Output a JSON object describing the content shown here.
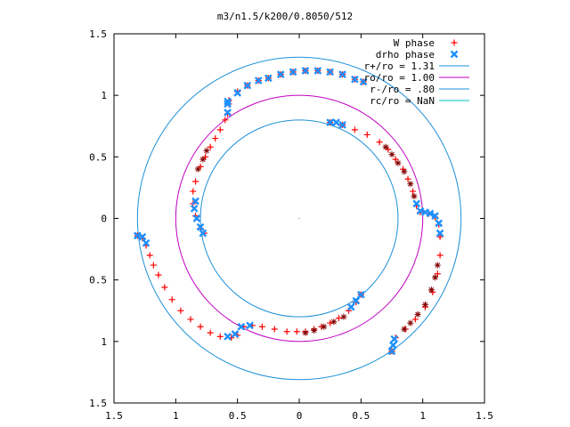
{
  "chart_data": {
    "type": "scatter",
    "title": "m3/n1.5/k200/0.8050/512",
    "xlabel": "",
    "ylabel": "",
    "xlim": [
      -1.5,
      1.5
    ],
    "ylim": [
      -1.5,
      1.5
    ],
    "x_ticks": [
      -1.5,
      -1,
      -0.5,
      0,
      0.5,
      1,
      1.5
    ],
    "y_ticks": [
      1.5,
      1,
      0.5,
      0,
      -0.5,
      -1,
      -1.5
    ],
    "x_tick_labels": [
      "1.5",
      "1",
      "0.5",
      "0",
      "0.5",
      "1",
      "1.5"
    ],
    "y_tick_labels": [
      "1.5",
      "1",
      "0.5",
      "0",
      "0.5",
      "1",
      "1.5"
    ],
    "grid": false,
    "legend_position": "top-right",
    "legend": [
      {
        "label": "W phase",
        "kind": "marker",
        "marker": "+",
        "color": "#ff0000"
      },
      {
        "label": "drho phase",
        "kind": "marker",
        "marker": "x",
        "color": "#1e90ff"
      },
      {
        "label": "r+/ro = 1.31",
        "kind": "line",
        "color": "#1e90d8"
      },
      {
        "label": "ro/ro = 1.00",
        "kind": "line",
        "color": "#c000c0"
      },
      {
        "label": "r-/ro = .80",
        "kind": "line",
        "color": "#1e90d8"
      },
      {
        "label": "rc/ro = NaN",
        "kind": "line",
        "color": "#00c0c0"
      }
    ],
    "circles": [
      {
        "name": "r+/ro = 1.31",
        "r": 1.31,
        "color": "#1e90d8"
      },
      {
        "name": "ro/ro = 1.00",
        "r": 1.0,
        "color": "#c000c0"
      },
      {
        "name": "r-/ro = .80",
        "r": 0.8,
        "color": "#1e90d8"
      }
    ],
    "series": [
      {
        "name": "W phase",
        "marker": "+",
        "color": "#ff0000",
        "points": [
          [
            -0.57,
            0.96
          ],
          [
            -0.5,
            1.03
          ],
          [
            -0.42,
            1.08
          ],
          [
            -0.33,
            1.12
          ],
          [
            -0.25,
            1.14
          ],
          [
            -0.15,
            1.17
          ],
          [
            -0.05,
            1.19
          ],
          [
            0.05,
            1.2
          ],
          [
            0.15,
            1.2
          ],
          [
            0.25,
            1.19
          ],
          [
            0.35,
            1.17
          ],
          [
            0.45,
            1.13
          ],
          [
            0.52,
            1.11
          ],
          [
            -0.57,
            0.93
          ],
          [
            -0.58,
            0.85
          ],
          [
            -0.6,
            0.8
          ],
          [
            -0.64,
            0.72
          ],
          [
            -0.68,
            0.65
          ],
          [
            -0.72,
            0.58
          ],
          [
            -0.76,
            0.5
          ],
          [
            -0.8,
            0.42
          ],
          [
            -0.84,
            0.3
          ],
          [
            -0.86,
            0.22
          ],
          [
            -0.86,
            0.12
          ],
          [
            -0.84,
            0.02
          ],
          [
            -0.8,
            -0.08
          ],
          [
            -0.77,
            -0.12
          ],
          [
            0.25,
            0.78
          ],
          [
            0.35,
            0.76
          ],
          [
            0.45,
            0.72
          ],
          [
            0.55,
            0.68
          ],
          [
            0.65,
            0.62
          ],
          [
            0.72,
            0.56
          ],
          [
            0.78,
            0.48
          ],
          [
            0.84,
            0.4
          ],
          [
            0.88,
            0.32
          ],
          [
            0.92,
            0.22
          ],
          [
            0.95,
            0.1
          ],
          [
            0.98,
            0.05
          ],
          [
            1.05,
            0.04
          ],
          [
            1.1,
            0.01
          ],
          [
            1.13,
            -0.05
          ],
          [
            1.14,
            -0.15
          ],
          [
            1.14,
            -0.3
          ],
          [
            1.12,
            -0.45
          ],
          [
            1.08,
            -0.6
          ],
          [
            1.02,
            -0.72
          ],
          [
            0.94,
            -0.82
          ],
          [
            0.86,
            -0.9
          ],
          [
            0.78,
            -0.97
          ],
          [
            0.75,
            -1.08
          ],
          [
            -1.31,
            -0.14
          ],
          [
            -1.27,
            -0.16
          ],
          [
            -1.24,
            -0.22
          ],
          [
            -1.21,
            -0.3
          ],
          [
            -1.18,
            -0.38
          ],
          [
            -1.14,
            -0.46
          ],
          [
            -1.09,
            -0.56
          ],
          [
            -1.03,
            -0.66
          ],
          [
            -0.96,
            -0.75
          ],
          [
            -0.88,
            -0.82
          ],
          [
            -0.8,
            -0.88
          ],
          [
            -0.72,
            -0.93
          ],
          [
            -0.64,
            -0.96
          ],
          [
            -0.55,
            -0.97
          ],
          [
            -0.5,
            -0.95
          ],
          [
            -0.45,
            -0.88
          ],
          [
            -0.38,
            -0.87
          ],
          [
            -0.3,
            -0.88
          ],
          [
            -0.2,
            -0.9
          ],
          [
            -0.1,
            -0.92
          ],
          [
            -0.02,
            -0.92
          ],
          [
            0.05,
            -0.92
          ],
          [
            0.12,
            -0.9
          ],
          [
            0.18,
            -0.88
          ],
          [
            0.25,
            -0.85
          ],
          [
            0.32,
            -0.81
          ],
          [
            0.4,
            -0.75
          ],
          [
            0.46,
            -0.68
          ],
          [
            0.5,
            -0.62
          ]
        ]
      },
      {
        "name": "drho phase",
        "marker": "x",
        "color": "#1e90ff",
        "points": [
          [
            -0.58,
            0.95
          ],
          [
            -0.5,
            1.02
          ],
          [
            -0.42,
            1.08
          ],
          [
            -0.33,
            1.12
          ],
          [
            -0.25,
            1.14
          ],
          [
            -0.15,
            1.17
          ],
          [
            -0.05,
            1.19
          ],
          [
            0.05,
            1.2
          ],
          [
            0.15,
            1.2
          ],
          [
            0.25,
            1.19
          ],
          [
            0.35,
            1.17
          ],
          [
            0.45,
            1.13
          ],
          [
            0.52,
            1.11
          ],
          [
            -0.58,
            0.93
          ],
          [
            -0.58,
            0.86
          ],
          [
            -0.84,
            0.14
          ],
          [
            -0.85,
            0.08
          ],
          [
            -0.83,
            0.0
          ],
          [
            -0.8,
            -0.07
          ],
          [
            -0.78,
            -0.12
          ],
          [
            0.25,
            0.78
          ],
          [
            0.3,
            0.78
          ],
          [
            0.35,
            0.76
          ],
          [
            0.95,
            0.12
          ],
          [
            0.98,
            0.06
          ],
          [
            1.02,
            0.05
          ],
          [
            1.06,
            0.04
          ],
          [
            1.1,
            0.02
          ],
          [
            1.13,
            -0.04
          ],
          [
            1.14,
            -0.12
          ],
          [
            0.77,
            -0.98
          ],
          [
            0.76,
            -1.03
          ],
          [
            0.75,
            -1.08
          ],
          [
            -1.31,
            -0.14
          ],
          [
            -1.27,
            -0.15
          ],
          [
            -1.24,
            -0.2
          ],
          [
            -0.58,
            -0.96
          ],
          [
            -0.52,
            -0.94
          ],
          [
            -0.47,
            -0.88
          ],
          [
            -0.4,
            -0.87
          ],
          [
            0.42,
            -0.72
          ],
          [
            0.46,
            -0.67
          ],
          [
            0.5,
            -0.62
          ]
        ]
      },
      {
        "name": "star markers",
        "marker": "*",
        "color": "#800000",
        "points": [
          [
            0.7,
            0.58
          ],
          [
            0.75,
            0.52
          ],
          [
            0.8,
            0.45
          ],
          [
            0.85,
            0.38
          ],
          [
            0.9,
            0.28
          ],
          [
            0.93,
            0.18
          ],
          [
            0.85,
            -0.9
          ],
          [
            0.9,
            -0.85
          ],
          [
            0.96,
            -0.78
          ],
          [
            1.02,
            -0.7
          ],
          [
            1.07,
            -0.58
          ],
          [
            1.1,
            -0.48
          ],
          [
            1.12,
            -0.38
          ],
          [
            0.05,
            -0.93
          ],
          [
            0.12,
            -0.91
          ],
          [
            0.2,
            -0.88
          ],
          [
            0.28,
            -0.84
          ],
          [
            0.36,
            -0.8
          ],
          [
            -0.75,
            0.55
          ],
          [
            -0.78,
            0.48
          ],
          [
            -0.82,
            0.4
          ]
        ]
      }
    ]
  }
}
